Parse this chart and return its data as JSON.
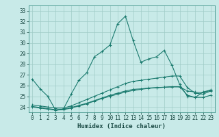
{
  "xlabel": "Humidex (Indice chaleur)",
  "ylabel": "",
  "background_color": "#c8eae8",
  "grid_color": "#a0ccc8",
  "line_color": "#1a7a6e",
  "xlim": [
    -0.5,
    23.5
  ],
  "ylim": [
    23.5,
    33.5
  ],
  "yticks": [
    24,
    25,
    26,
    27,
    28,
    29,
    30,
    31,
    32,
    33
  ],
  "xticks": [
    0,
    1,
    2,
    3,
    4,
    5,
    6,
    7,
    8,
    9,
    10,
    11,
    12,
    13,
    14,
    15,
    16,
    17,
    18,
    19,
    20,
    21,
    22,
    23
  ],
  "line1_x": [
    0,
    1,
    2,
    3,
    4,
    5,
    6,
    7,
    8,
    9,
    10,
    11,
    12,
    13,
    14,
    15,
    16,
    17,
    18,
    19,
    20,
    21,
    22,
    23
  ],
  "line1_y": [
    26.6,
    25.7,
    25.0,
    23.7,
    23.8,
    25.2,
    26.5,
    27.2,
    28.7,
    29.2,
    29.8,
    31.8,
    32.5,
    30.2,
    28.2,
    28.5,
    28.7,
    29.3,
    27.9,
    26.1,
    25.0,
    24.9,
    25.4,
    25.6
  ],
  "line2_x": [
    0,
    1,
    2,
    3,
    4,
    5,
    6,
    7,
    8,
    9,
    10,
    11,
    12,
    13,
    14,
    15,
    16,
    17,
    18,
    19,
    20,
    21,
    22,
    23
  ],
  "line2_y": [
    24.2,
    24.1,
    24.0,
    23.9,
    23.9,
    24.1,
    24.4,
    24.7,
    25.0,
    25.3,
    25.6,
    25.9,
    26.2,
    26.4,
    26.5,
    26.6,
    26.7,
    26.8,
    26.9,
    26.9,
    25.8,
    25.3,
    25.2,
    25.5
  ],
  "line3_x": [
    0,
    1,
    2,
    3,
    4,
    5,
    6,
    7,
    8,
    9,
    10,
    11,
    12,
    13,
    14,
    15,
    16,
    17,
    18,
    19,
    20,
    21,
    22,
    23
  ],
  "line3_y": [
    24.0,
    23.9,
    23.8,
    23.7,
    23.75,
    23.9,
    24.1,
    24.3,
    24.55,
    24.8,
    25.0,
    25.2,
    25.4,
    25.55,
    25.65,
    25.75,
    25.8,
    25.85,
    25.9,
    25.9,
    25.1,
    24.9,
    24.9,
    25.1
  ],
  "line4_x": [
    0,
    1,
    2,
    3,
    4,
    5,
    6,
    7,
    8,
    9,
    10,
    11,
    12,
    13,
    14,
    15,
    16,
    17,
    18,
    19,
    20,
    21,
    22,
    23
  ],
  "line4_y": [
    24.05,
    23.95,
    23.85,
    23.75,
    23.8,
    23.95,
    24.15,
    24.35,
    24.6,
    24.85,
    25.1,
    25.3,
    25.5,
    25.65,
    25.7,
    25.78,
    25.82,
    25.85,
    25.88,
    25.88,
    25.5,
    25.4,
    25.35,
    25.55
  ],
  "tick_fontsize": 5.5,
  "xlabel_fontsize": 6.5
}
